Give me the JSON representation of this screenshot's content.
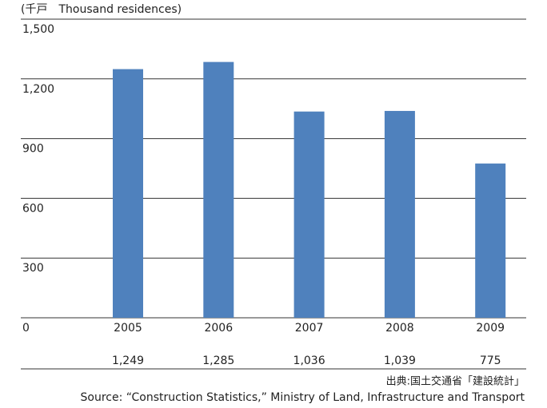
{
  "chart_data": {
    "type": "bar",
    "unit_label": "(千戸　Thousand residences)",
    "categories": [
      "2005",
      "2006",
      "2007",
      "2008",
      "2009"
    ],
    "values": [
      1249,
      1285,
      1036,
      1039,
      775
    ],
    "value_labels": [
      "1,249",
      "1,285",
      "1,036",
      "1,039",
      "775"
    ],
    "color": "#4f81bd",
    "ylim": [
      0,
      1500
    ],
    "yticks": [
      0,
      300,
      600,
      900,
      {
        "value": 1200,
        "label": "1,200"
      },
      {
        "value": 1500,
        "label": "1,500"
      }
    ],
    "grid": true,
    "source_ja": "出典:国土交通省「建設統計」",
    "source_en": "Source: “Construction Statistics,” Ministry of Land, Infrastructure and Transport"
  }
}
